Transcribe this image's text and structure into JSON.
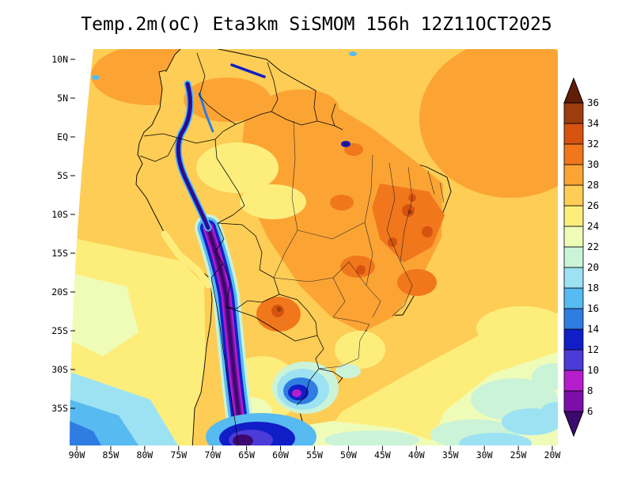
{
  "title": "Temp.2m(oC) Eta3km SiSMOM 156h 12Z11OCT2025",
  "axes": {
    "lat_labels": [
      "10N",
      "5N",
      "EQ",
      "5S",
      "10S",
      "15S",
      "20S",
      "25S",
      "30S",
      "35S"
    ],
    "lon_labels": [
      "90W",
      "85W",
      "80W",
      "75W",
      "70W",
      "65W",
      "60W",
      "55W",
      "50W",
      "45W",
      "40W",
      "35W",
      "30W",
      "25W",
      "20W"
    ]
  },
  "colorbar": {
    "tick_labels_top_to_bottom": [
      "36",
      "34",
      "32",
      "30",
      "28",
      "26",
      "24",
      "22",
      "20",
      "18",
      "16",
      "14",
      "12",
      "10",
      "8",
      "6"
    ],
    "bands_bottom_to_top": [
      {
        "name": "lt6",
        "color": "#3c0a6e"
      },
      {
        "name": "b6",
        "color": "#7c0fa8"
      },
      {
        "name": "b8",
        "color": "#b41ecb"
      },
      {
        "name": "b10",
        "color": "#4b3bd8"
      },
      {
        "name": "b12",
        "color": "#101ec8"
      },
      {
        "name": "b14",
        "color": "#2f7de2"
      },
      {
        "name": "b16",
        "color": "#57baf0"
      },
      {
        "name": "b18",
        "color": "#9ce2f2"
      },
      {
        "name": "b20",
        "color": "#cbf3d8"
      },
      {
        "name": "b22",
        "color": "#effcb8"
      },
      {
        "name": "b24",
        "color": "#fdee7c"
      },
      {
        "name": "b26",
        "color": "#fdcd55"
      },
      {
        "name": "b28",
        "color": "#fba434"
      },
      {
        "name": "b30",
        "color": "#f1771c"
      },
      {
        "name": "b32",
        "color": "#d5520f"
      },
      {
        "name": "b34",
        "color": "#9d3c0d"
      },
      {
        "name": "gt36",
        "color": "#601e06"
      }
    ]
  },
  "chart_data": {
    "type": "heatmap",
    "title": "Temp.2m(oC) Eta3km SiSMOM 156h 12Z11OCT2025",
    "variable": "Temp.2m (oC)",
    "model": "Eta3km",
    "system": "SiSMOM",
    "forecast_hour": "156h",
    "valid_time": "12Z11OCT2025",
    "x_tick_labels": [
      "90W",
      "85W",
      "80W",
      "75W",
      "70W",
      "65W",
      "60W",
      "55W",
      "50W",
      "45W",
      "40W",
      "35W",
      "30W",
      "25W",
      "20W"
    ],
    "y_tick_labels": [
      "10N",
      "5N",
      "EQ",
      "5S",
      "10S",
      "15S",
      "20S",
      "25S",
      "30S",
      "35S"
    ],
    "scale_levels_degC": [
      6,
      8,
      10,
      12,
      14,
      16,
      18,
      20,
      22,
      24,
      26,
      28,
      30,
      32,
      34,
      36
    ],
    "legend_position": "right",
    "region": "South America"
  }
}
